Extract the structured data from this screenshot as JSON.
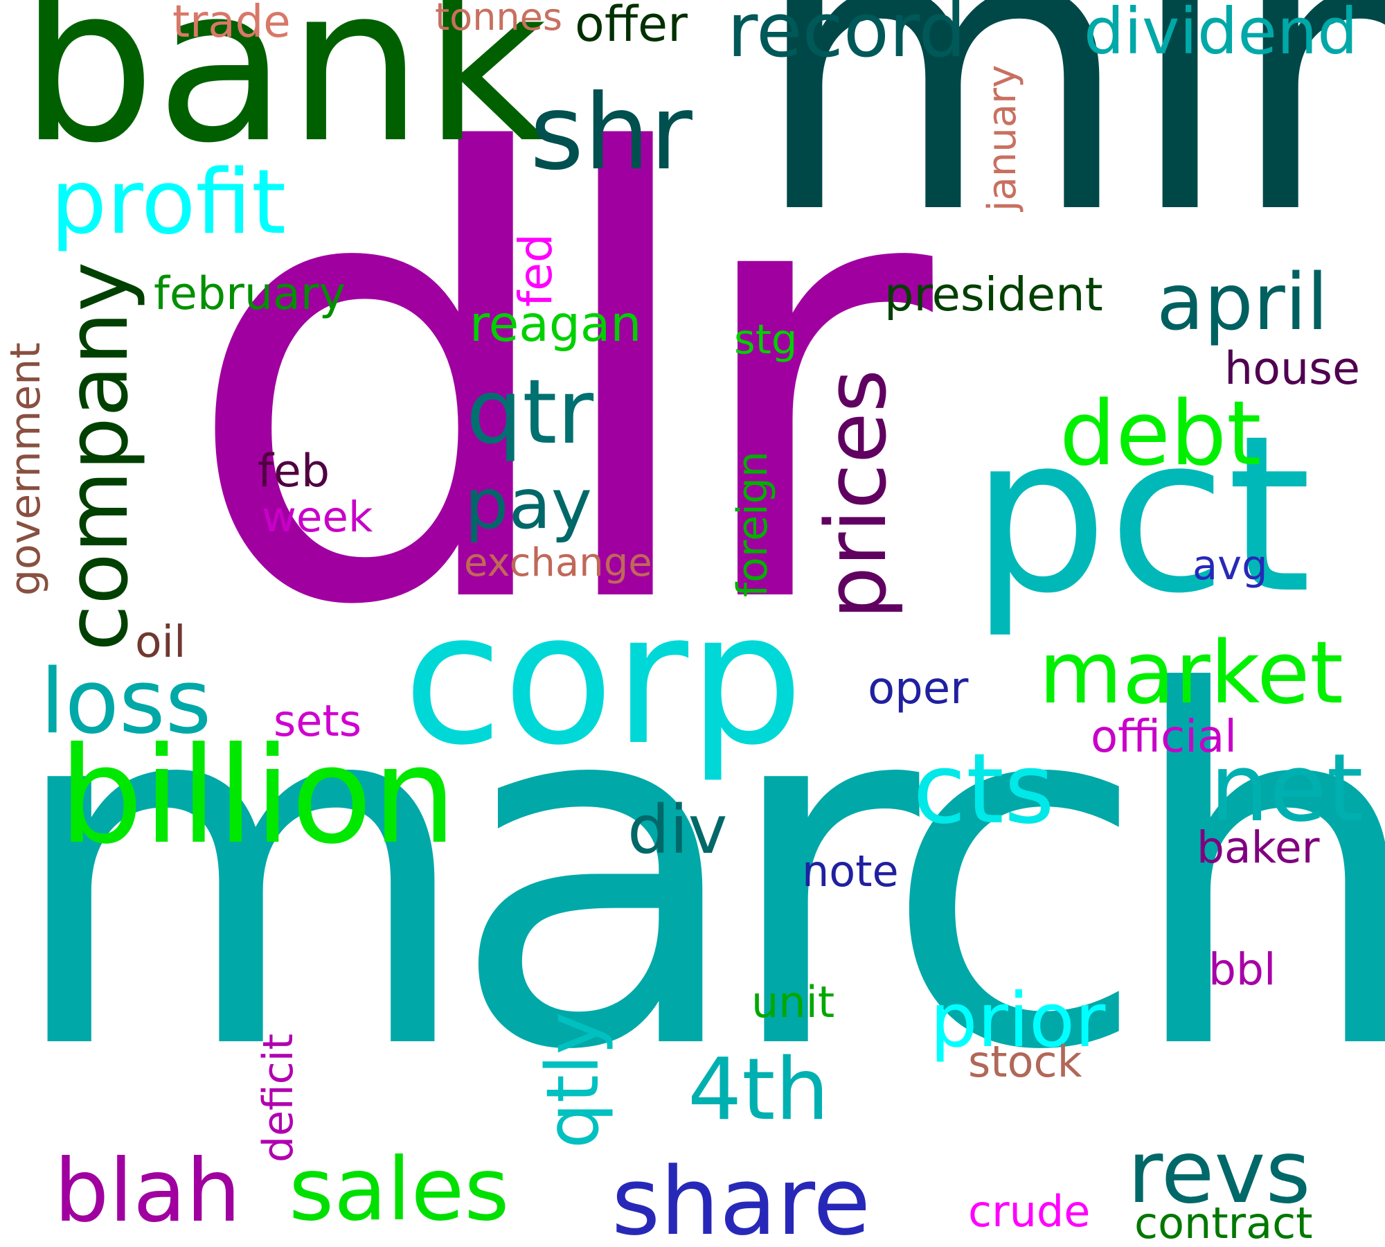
{
  "words": {
    "dlr": {
      "text": "dlr",
      "color": "#a000a0"
    },
    "mln": {
      "text": "mln",
      "color": "#004848"
    },
    "march": {
      "text": "march",
      "color": "#00a8a8"
    },
    "bank": {
      "text": "bank",
      "color": "#006000"
    },
    "pct": {
      "text": "pct",
      "color": "#00b8b8"
    },
    "corp": {
      "text": "corp",
      "color": "#00d8d8"
    },
    "billion": {
      "text": "billion",
      "color": "#00e800"
    },
    "company": {
      "text": "company",
      "color": "#004000"
    },
    "profit": {
      "text": "profit",
      "color": "#00ffff"
    },
    "shr": {
      "text": "shr",
      "color": "#005050"
    },
    "record": {
      "text": "record",
      "color": "#005858"
    },
    "dividend": {
      "text": "dividend",
      "color": "#00a8a8"
    },
    "prices": {
      "text": "prices",
      "color": "#600060"
    },
    "qtr": {
      "text": "qtr",
      "color": "#007070"
    },
    "debt": {
      "text": "debt",
      "color": "#00f000"
    },
    "market": {
      "text": "market",
      "color": "#00f000"
    },
    "april": {
      "text": "april",
      "color": "#006060"
    },
    "loss": {
      "text": "loss",
      "color": "#00a8a8"
    },
    "cts": {
      "text": "cts",
      "color": "#00e8e8"
    },
    "net": {
      "text": "net",
      "color": "#00b0b0"
    },
    "blah": {
      "text": "blah",
      "color": "#a000a0"
    },
    "sales": {
      "text": "sales",
      "color": "#00e000"
    },
    "share": {
      "text": "share",
      "color": "#2828b8"
    },
    "revs": {
      "text": "revs",
      "color": "#006868"
    },
    "4th": {
      "text": "4th",
      "color": "#00b0b0"
    },
    "prior": {
      "text": "prior",
      "color": "#00ffff"
    },
    "qtly": {
      "text": "qtly",
      "color": "#00c0c0"
    },
    "pay": {
      "text": "pay",
      "color": "#006868"
    },
    "div": {
      "text": "div",
      "color": "#006868"
    },
    "president": {
      "text": "president",
      "color": "#004000"
    },
    "february": {
      "text": "february",
      "color": "#009000"
    },
    "reagan": {
      "text": "reagan",
      "color": "#00d000"
    },
    "house": {
      "text": "house",
      "color": "#500050"
    },
    "government": {
      "text": "government",
      "color": "#885040"
    },
    "fed": {
      "text": "fed",
      "color": "#ff00ff"
    },
    "january": {
      "text": "january",
      "color": "#c87060"
    },
    "trade": {
      "text": "trade",
      "color": "#d87868"
    },
    "tonnes": {
      "text": "tonnes",
      "color": "#c87060"
    },
    "offer": {
      "text": "offer",
      "color": "#003000"
    },
    "stg": {
      "text": "stg",
      "color": "#00d000"
    },
    "foreign": {
      "text": "foreign",
      "color": "#00b000"
    },
    "feb": {
      "text": "feb",
      "color": "#500040"
    },
    "week": {
      "text": "week",
      "color": "#c800c8"
    },
    "exchange": {
      "text": "exchange",
      "color": "#c06858"
    },
    "avg": {
      "text": "avg",
      "color": "#2828b8"
    },
    "oil": {
      "text": "oil",
      "color": "#703830"
    },
    "oper": {
      "text": "oper",
      "color": "#2020a0"
    },
    "sets": {
      "text": "sets",
      "color": "#d000d0"
    },
    "official": {
      "text": "official",
      "color": "#c800c8"
    },
    "note": {
      "text": "note",
      "color": "#2020a0"
    },
    "baker": {
      "text": "baker",
      "color": "#800080"
    },
    "deficit": {
      "text": "deficit",
      "color": "#b000b0"
    },
    "unit": {
      "text": "unit",
      "color": "#00a800"
    },
    "bbl": {
      "text": "bbl",
      "color": "#a800a8"
    },
    "stock": {
      "text": "stock",
      "color": "#b06858"
    },
    "crude": {
      "text": "crude",
      "color": "#ff00ff"
    },
    "contract": {
      "text": "contract",
      "color": "#007800"
    }
  }
}
